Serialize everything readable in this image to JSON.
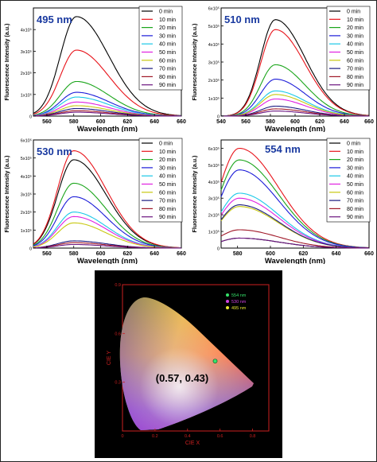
{
  "panels": [
    {
      "id": "p495",
      "label": "495 nm",
      "xlabel": "Wavelength (nm)",
      "ylabel": "Fluorescence Intensity (a.u.)",
      "xticks": [
        "560",
        "580",
        "600",
        "620",
        "640",
        "660"
      ],
      "yticks": [
        "0",
        "1x10⁵",
        "2x10⁵",
        "3x10⁵",
        "4x10⁵"
      ],
      "legend": [
        "0 min",
        "10 min",
        "20 min",
        "30 min",
        "40 min",
        "50 min",
        "60 min",
        "70 min",
        "80 min",
        "90 min"
      ]
    },
    {
      "id": "p510",
      "label": "510 nm",
      "xlabel": "Wavelength (nm)",
      "ylabel": "Fluorescence Intensity (a.u.)",
      "xticks": [
        "540",
        "560",
        "580",
        "600",
        "620",
        "640",
        "660"
      ],
      "yticks": [
        "0",
        "1x10⁵",
        "2x10⁵",
        "3x10⁵",
        "4x10⁵",
        "5x10⁵",
        "6x10⁵"
      ],
      "legend": [
        "0 min",
        "10 min",
        "20 min",
        "30 min",
        "40 min",
        "50 min",
        "60 min",
        "70 min",
        "80 min",
        "90 min"
      ]
    },
    {
      "id": "p530",
      "label": "530 nm",
      "xlabel": "Wavelength (nm)",
      "ylabel": "Fluorescence Intensity (a.u.)",
      "xticks": [
        "560",
        "580",
        "600",
        "620",
        "640",
        "660"
      ],
      "yticks": [
        "0",
        "1x10⁵",
        "2x10⁵",
        "3x10⁵",
        "4x10⁵",
        "5x10⁵",
        "6x10⁵"
      ],
      "legend": [
        "0 min",
        "10 min",
        "20 min",
        "30 min",
        "40 min",
        "50 min",
        "60 min",
        "70 min",
        "80 min",
        "90 min"
      ]
    },
    {
      "id": "p554",
      "label": "554 nm",
      "xlabel": "Wavelength (nm)",
      "ylabel": "Fluorescence Intensity (a.u.)",
      "xticks": [
        "580",
        "600",
        "620",
        "640",
        "660"
      ],
      "yticks": [
        "0",
        "1x10⁵",
        "2x10⁵",
        "3x10⁵",
        "4x10⁵",
        "5x10⁵",
        "6x10⁵"
      ],
      "legend": [
        "0 min",
        "10 min",
        "20 min",
        "30 min",
        "40 min",
        "50 min",
        "60 min",
        "70 min",
        "80 min",
        "90 min"
      ]
    }
  ],
  "colors": [
    "#000000",
    "#e8141b",
    "#1aa51a",
    "#1a1ad8",
    "#19c8e8",
    "#e020e0",
    "#c8c810",
    "#1a1a80",
    "#a01828",
    "#6b1580"
  ],
  "chart_data": [
    {
      "type": "line",
      "label": "495 nm",
      "xlabel": "Wavelength (nm)",
      "ylabel": "Fluorescence Intensity (a.u.)",
      "xlim": [
        550,
        660
      ],
      "ylim": [
        0,
        500000
      ],
      "peak_x": 582,
      "series": [
        {
          "name": "0 min",
          "peak": 460000
        },
        {
          "name": "10 min",
          "peak": 305000
        },
        {
          "name": "20 min",
          "peak": 160000
        },
        {
          "name": "30 min",
          "peak": 110000
        },
        {
          "name": "40 min",
          "peak": 88000
        },
        {
          "name": "50 min",
          "peak": 65000
        },
        {
          "name": "60 min",
          "peak": 48000
        },
        {
          "name": "70 min",
          "peak": 35000
        },
        {
          "name": "80 min",
          "peak": 25000
        },
        {
          "name": "90 min",
          "peak": 18000
        }
      ]
    },
    {
      "type": "line",
      "label": "510 nm",
      "xlabel": "Wavelength (nm)",
      "ylabel": "Fluorescence Intensity (a.u.)",
      "xlim": [
        540,
        660
      ],
      "ylim": [
        0,
        600000
      ],
      "peak_x": 584,
      "series": [
        {
          "name": "0 min",
          "peak": 535000
        },
        {
          "name": "10 min",
          "peak": 480000
        },
        {
          "name": "20 min",
          "peak": 285000
        },
        {
          "name": "30 min",
          "peak": 205000
        },
        {
          "name": "40 min",
          "peak": 140000
        },
        {
          "name": "50 min",
          "peak": 95000
        },
        {
          "name": "60 min",
          "peak": 120000
        },
        {
          "name": "70 min",
          "peak": 55000
        },
        {
          "name": "80 min",
          "peak": 40000
        },
        {
          "name": "90 min",
          "peak": 28000
        }
      ]
    },
    {
      "type": "line",
      "label": "530 nm",
      "xlabel": "Wavelength (nm)",
      "ylabel": "Fluorescence Intensity (a.u.)",
      "xlim": [
        550,
        660
      ],
      "ylim": [
        0,
        600000
      ],
      "peak_x": 580,
      "series": [
        {
          "name": "0 min",
          "peak": 490000
        },
        {
          "name": "10 min",
          "peak": 540000
        },
        {
          "name": "20 min",
          "peak": 360000
        },
        {
          "name": "30 min",
          "peak": 285000
        },
        {
          "name": "40 min",
          "peak": 200000
        },
        {
          "name": "50 min",
          "peak": 175000
        },
        {
          "name": "60 min",
          "peak": 140000
        },
        {
          "name": "70 min",
          "peak": 40000
        },
        {
          "name": "80 min",
          "peak": 30000
        },
        {
          "name": "90 min",
          "peak": 20000
        }
      ]
    },
    {
      "type": "line",
      "label": "554 nm",
      "xlabel": "Wavelength (nm)",
      "ylabel": "Fluorescence Intensity (a.u.)",
      "xlim": [
        570,
        660
      ],
      "ylim": [
        0,
        650000
      ],
      "peak_x": 581,
      "series": [
        {
          "name": "0 min",
          "peak": 60000
        },
        {
          "name": "10 min",
          "peak": 600000
        },
        {
          "name": "20 min",
          "peak": 530000
        },
        {
          "name": "30 min",
          "peak": 470000
        },
        {
          "name": "40 min",
          "peak": 330000
        },
        {
          "name": "50 min",
          "peak": 300000
        },
        {
          "name": "60 min",
          "peak": 250000
        },
        {
          "name": "70 min",
          "peak": 260000
        },
        {
          "name": "80 min",
          "peak": 110000
        },
        {
          "name": "90 min",
          "peak": 60000
        }
      ]
    },
    {
      "type": "scatter",
      "label": "CIE chromaticity",
      "xlabel": "CIE X",
      "ylabel": "CIE Y",
      "xticks": [
        "0",
        "0.2",
        "0.4",
        "0.6",
        "0.8"
      ],
      "yticks": [
        "0.3",
        "0.6",
        "0.9"
      ],
      "annotation": "(0.57, 0.43)",
      "legend": [
        {
          "name": "554 nm",
          "color": "#35e26a"
        },
        {
          "name": "530 nm",
          "color": "#d040e0"
        },
        {
          "name": "495 nm",
          "color": "#e8e830"
        }
      ],
      "points": [
        {
          "x": 0.57,
          "y": 0.43
        }
      ]
    }
  ]
}
